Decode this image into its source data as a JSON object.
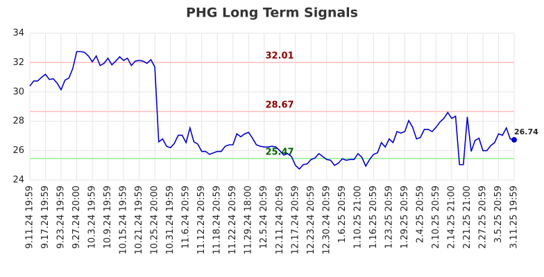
{
  "chart_data": {
    "type": "line",
    "title": "PHG Long Term Signals",
    "categories": [
      "9.11.24 19:59",
      null,
      null,
      null,
      "9.17.24 19:59",
      null,
      null,
      null,
      "9.23.24 19:59",
      null,
      null,
      null,
      "9.27.24 20:00",
      null,
      null,
      null,
      "10.3.24 19:59",
      null,
      null,
      null,
      "10.9.24 19:59",
      null,
      null,
      null,
      "10.15.24 19:59",
      null,
      null,
      null,
      "10.21.24 19:59",
      null,
      null,
      null,
      "10.25.24 20:00",
      null,
      null,
      null,
      "10.31.24 19:59",
      null,
      null,
      null,
      "11.6.24 20:59",
      null,
      null,
      null,
      "11.12.24 20:59",
      null,
      null,
      null,
      "11.18.24 20:59",
      null,
      null,
      null,
      "11.22.24 20:59",
      null,
      null,
      null,
      "11.29.24 18:00",
      null,
      null,
      null,
      "12.5.24 20:59",
      null,
      null,
      null,
      "12.11.24 20:59",
      null,
      null,
      null,
      "12.17.24 20:59",
      null,
      null,
      null,
      "12.23.24 20:59",
      null,
      null,
      null,
      "12.30.24 20:59",
      null,
      null,
      null,
      "1.6.25 20:59",
      null,
      null,
      null,
      "1.10.25 21:00",
      null,
      null,
      null,
      "1.16.25 20:59",
      null,
      null,
      null,
      "1.23.25 20:59",
      null,
      null,
      null,
      "1.29.25 20:59",
      null,
      null,
      null,
      "2.4.25 20:59",
      null,
      null,
      null,
      "2.10.25 20:59",
      null,
      null,
      null,
      "2.14.25 21:00",
      null,
      null,
      null,
      "2.21.25 21:00",
      null,
      null,
      null,
      "2.27.25 20:59",
      null,
      null,
      null,
      "3.5.25 20:59",
      null,
      null,
      null,
      "3.11.25 19:59"
    ],
    "values": [
      30.4,
      30.75,
      30.75,
      31.0,
      31.2,
      30.85,
      30.9,
      30.6,
      30.15,
      30.8,
      30.95,
      31.6,
      32.75,
      32.75,
      32.7,
      32.45,
      32.05,
      32.45,
      31.8,
      31.95,
      32.3,
      31.85,
      32.1,
      32.4,
      32.15,
      32.3,
      31.8,
      32.1,
      32.15,
      32.1,
      31.95,
      32.2,
      31.7,
      26.6,
      26.8,
      26.3,
      26.2,
      26.5,
      27.05,
      27.05,
      26.55,
      27.55,
      26.6,
      26.45,
      25.95,
      25.95,
      25.75,
      25.85,
      25.95,
      25.95,
      26.3,
      26.4,
      26.4,
      27.15,
      26.95,
      27.15,
      27.25,
      26.85,
      26.4,
      26.3,
      26.25,
      26.25,
      26.3,
      26.25,
      26.0,
      25.7,
      25.8,
      25.6,
      25.0,
      24.75,
      25.05,
      25.1,
      25.4,
      25.5,
      25.8,
      25.6,
      25.4,
      25.35,
      25.0,
      25.15,
      25.45,
      25.35,
      25.4,
      25.4,
      25.8,
      25.55,
      24.95,
      25.4,
      25.75,
      25.85,
      26.55,
      26.25,
      26.8,
      26.55,
      27.3,
      27.2,
      27.3,
      28.05,
      27.6,
      26.8,
      26.9,
      27.45,
      27.45,
      27.3,
      27.6,
      27.95,
      28.2,
      28.6,
      28.2,
      28.35,
      25.05,
      25.05,
      28.3,
      25.95,
      26.7,
      26.85,
      26.0,
      26.0,
      26.35,
      26.55,
      27.15,
      27.05,
      27.55,
      26.8,
      26.74
    ],
    "color": "#0000cc",
    "ylim": [
      24,
      34
    ],
    "yticks": [
      24,
      26,
      28,
      30,
      32,
      34
    ],
    "grid": true,
    "hlines": [
      {
        "value": 32.01,
        "color": "#ffbbbb",
        "label_color": "#8b0000"
      },
      {
        "value": 28.67,
        "color": "#ffbbbb",
        "label_color": "#8b0000"
      },
      {
        "value": 25.47,
        "color": "#90ee90",
        "label_color": "#006400"
      }
    ]
  }
}
